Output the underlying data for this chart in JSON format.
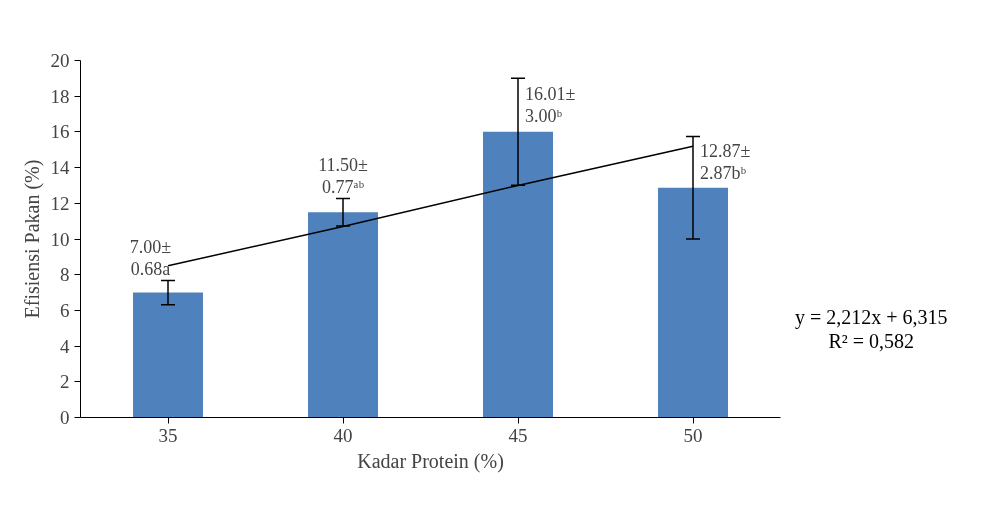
{
  "chart_data": {
    "type": "bar",
    "xlabel": "Kadar Protein (%)",
    "ylabel": "Efisiensi Pakan (%)",
    "categories": [
      "35",
      "40",
      "45",
      "50"
    ],
    "series": [
      {
        "color": "#4f81bd",
        "values": [
          7.0,
          11.5,
          16.01,
          12.87
        ],
        "errors": [
          0.68,
          0.77,
          3.0,
          2.87
        ],
        "value_labels": [
          "7.00±\n0.68a",
          "11.50±\n0.77ᵃᵇ",
          "16.01±\n3.00ᵇ",
          "12.87±\n2.87bᵇ"
        ]
      },
      {
        "type": "line",
        "color": "#000000",
        "x": [
          "35",
          "40",
          "45",
          "50"
        ],
        "values": [
          8.5,
          10.7,
          13.0,
          15.2
        ]
      }
    ],
    "ylim": [
      0,
      20
    ],
    "yticks": [
      0,
      2,
      4,
      6,
      8,
      10,
      12,
      14,
      16,
      18,
      20
    ],
    "grid": false,
    "annotations": [
      "y = 2,212x + 6,315",
      "R² = 0,582"
    ]
  }
}
